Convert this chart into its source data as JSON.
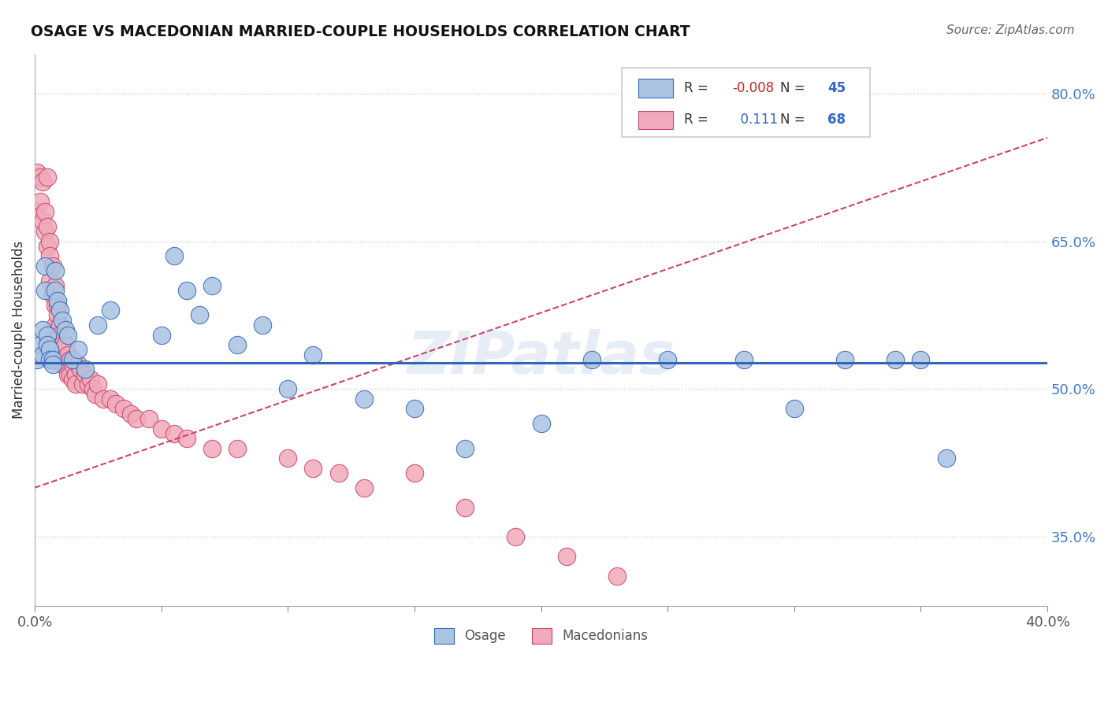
{
  "title": "OSAGE VS MACEDONIAN MARRIED-COUPLE HOUSEHOLDS CORRELATION CHART",
  "source": "Source: ZipAtlas.com",
  "ylabel": "Married-couple Households",
  "xlim": [
    0.0,
    0.4
  ],
  "ylim": [
    0.28,
    0.84
  ],
  "yticks": [
    0.35,
    0.5,
    0.65,
    0.8
  ],
  "ytick_labels": [
    "35.0%",
    "50.0%",
    "65.0%",
    "80.0%"
  ],
  "xticks": [
    0.0,
    0.05,
    0.1,
    0.15,
    0.2,
    0.25,
    0.3,
    0.35,
    0.4
  ],
  "xtick_labels": [
    "0.0%",
    "",
    "",
    "",
    "",
    "",
    "",
    "",
    "40.0%"
  ],
  "grid_color": "#cccccc",
  "background_color": "#ffffff",
  "osage_color": "#aac4e2",
  "macedonian_color": "#f0aabb",
  "osage_R": -0.008,
  "osage_N": 45,
  "macedonian_R": 0.111,
  "macedonian_N": 68,
  "osage_line_color": "#3366bb",
  "macedonian_line_color": "#cc4466",
  "watermark": "ZIPatlas",
  "osage_trend_y0": 0.527,
  "osage_trend_y1": 0.527,
  "macedonian_trend_y0": 0.4,
  "macedonian_trend_y1": 0.755,
  "osage_x": [
    0.001,
    0.002,
    0.003,
    0.003,
    0.004,
    0.004,
    0.005,
    0.005,
    0.006,
    0.006,
    0.007,
    0.007,
    0.008,
    0.008,
    0.009,
    0.01,
    0.011,
    0.012,
    0.013,
    0.015,
    0.017,
    0.02,
    0.025,
    0.03,
    0.05,
    0.055,
    0.06,
    0.065,
    0.07,
    0.08,
    0.09,
    0.1,
    0.11,
    0.13,
    0.15,
    0.17,
    0.2,
    0.22,
    0.25,
    0.28,
    0.3,
    0.32,
    0.34,
    0.35,
    0.36
  ],
  "osage_y": [
    0.53,
    0.545,
    0.535,
    0.56,
    0.625,
    0.6,
    0.555,
    0.545,
    0.54,
    0.53,
    0.53,
    0.525,
    0.62,
    0.6,
    0.59,
    0.58,
    0.57,
    0.56,
    0.555,
    0.53,
    0.54,
    0.52,
    0.565,
    0.58,
    0.555,
    0.635,
    0.6,
    0.575,
    0.605,
    0.545,
    0.565,
    0.5,
    0.535,
    0.49,
    0.48,
    0.44,
    0.465,
    0.53,
    0.53,
    0.53,
    0.48,
    0.53,
    0.53,
    0.53,
    0.43
  ],
  "macedonian_x": [
    0.001,
    0.001,
    0.002,
    0.002,
    0.003,
    0.003,
    0.004,
    0.004,
    0.005,
    0.005,
    0.005,
    0.006,
    0.006,
    0.006,
    0.007,
    0.007,
    0.007,
    0.008,
    0.008,
    0.008,
    0.009,
    0.009,
    0.009,
    0.01,
    0.01,
    0.01,
    0.011,
    0.011,
    0.012,
    0.012,
    0.013,
    0.013,
    0.014,
    0.014,
    0.015,
    0.015,
    0.016,
    0.016,
    0.017,
    0.018,
    0.019,
    0.02,
    0.021,
    0.022,
    0.023,
    0.024,
    0.025,
    0.027,
    0.03,
    0.032,
    0.035,
    0.038,
    0.04,
    0.045,
    0.05,
    0.055,
    0.06,
    0.07,
    0.08,
    0.1,
    0.11,
    0.12,
    0.13,
    0.15,
    0.17,
    0.19,
    0.21,
    0.23
  ],
  "macedonian_y": [
    0.72,
    0.68,
    0.715,
    0.69,
    0.71,
    0.67,
    0.68,
    0.66,
    0.665,
    0.645,
    0.715,
    0.65,
    0.635,
    0.61,
    0.6,
    0.625,
    0.595,
    0.605,
    0.585,
    0.565,
    0.585,
    0.575,
    0.555,
    0.565,
    0.555,
    0.535,
    0.545,
    0.525,
    0.545,
    0.525,
    0.535,
    0.515,
    0.53,
    0.515,
    0.525,
    0.51,
    0.515,
    0.505,
    0.525,
    0.52,
    0.505,
    0.515,
    0.505,
    0.51,
    0.5,
    0.495,
    0.505,
    0.49,
    0.49,
    0.485,
    0.48,
    0.475,
    0.47,
    0.47,
    0.46,
    0.455,
    0.45,
    0.44,
    0.44,
    0.43,
    0.42,
    0.415,
    0.4,
    0.415,
    0.38,
    0.35,
    0.33,
    0.31
  ]
}
